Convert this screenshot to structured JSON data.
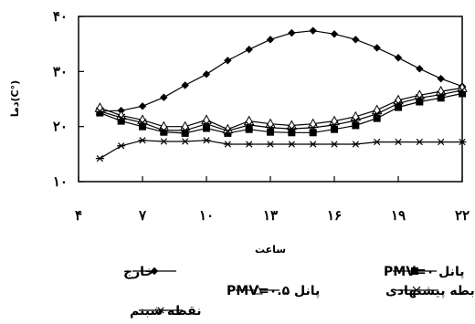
{
  "chart_data": {
    "type": "line",
    "xlabel": "ساعت",
    "ylabel": "دما(C°)",
    "xlim": [
      4,
      22
    ],
    "ylim": [
      10,
      40
    ],
    "xticks": [
      4,
      7,
      10,
      13,
      16,
      19,
      22
    ],
    "xtick_labels": [
      "۴",
      "۷",
      "۱۰",
      "۱۳",
      "۱۶",
      "۱۹",
      "۲۲"
    ],
    "yticks": [
      10,
      20,
      30,
      40
    ],
    "ytick_labels": [
      "۱۰",
      "۲۰",
      "۳۰",
      "۴۰"
    ],
    "grid": false,
    "legend_position": "bottom",
    "x": [
      5,
      6,
      7,
      8,
      9,
      10,
      11,
      12,
      13,
      14,
      15,
      16,
      17,
      18,
      19,
      20,
      21,
      22
    ],
    "series": [
      {
        "name": "خارج",
        "marker": "diamond",
        "values": [
          22.8,
          22.9,
          23.7,
          25.3,
          27.5,
          29.5,
          32,
          34,
          35.8,
          37,
          37.4,
          36.8,
          35.8,
          34.3,
          32.5,
          30.5,
          28.7,
          27.3
        ]
      },
      {
        "name": "پانل PMV=۰",
        "marker": "square",
        "values": [
          22.5,
          21,
          20,
          19,
          18.8,
          19.7,
          18.8,
          19.5,
          19,
          18.9,
          18.9,
          19.5,
          20.2,
          21.5,
          23.5,
          24.5,
          25.2,
          26
        ]
      },
      {
        "name": "پانل PMV=۰.۵",
        "marker": "triangle",
        "values": [
          23.4,
          22,
          21.2,
          20,
          20,
          21.2,
          19.5,
          21,
          20.5,
          20.2,
          20.5,
          21,
          21.8,
          23,
          24.8,
          25.7,
          26.4,
          27
        ]
      },
      {
        "name": "رابطه پیشنهادی",
        "marker": "x",
        "values": [
          22.8,
          21.6,
          20.7,
          19.3,
          19.3,
          20.5,
          19.2,
          20.3,
          19.8,
          19.6,
          19.8,
          20.3,
          21.1,
          22.3,
          24.2,
          25.2,
          25.8,
          26.6
        ]
      },
      {
        "name": "نقطه شبنم",
        "marker": "star",
        "values": [
          14.2,
          16.5,
          17.5,
          17.3,
          17.3,
          17.5,
          16.8,
          16.8,
          16.8,
          16.8,
          16.8,
          16.8,
          16.8,
          17.2,
          17.2,
          17.2,
          17.2,
          17.2
        ]
      }
    ]
  }
}
